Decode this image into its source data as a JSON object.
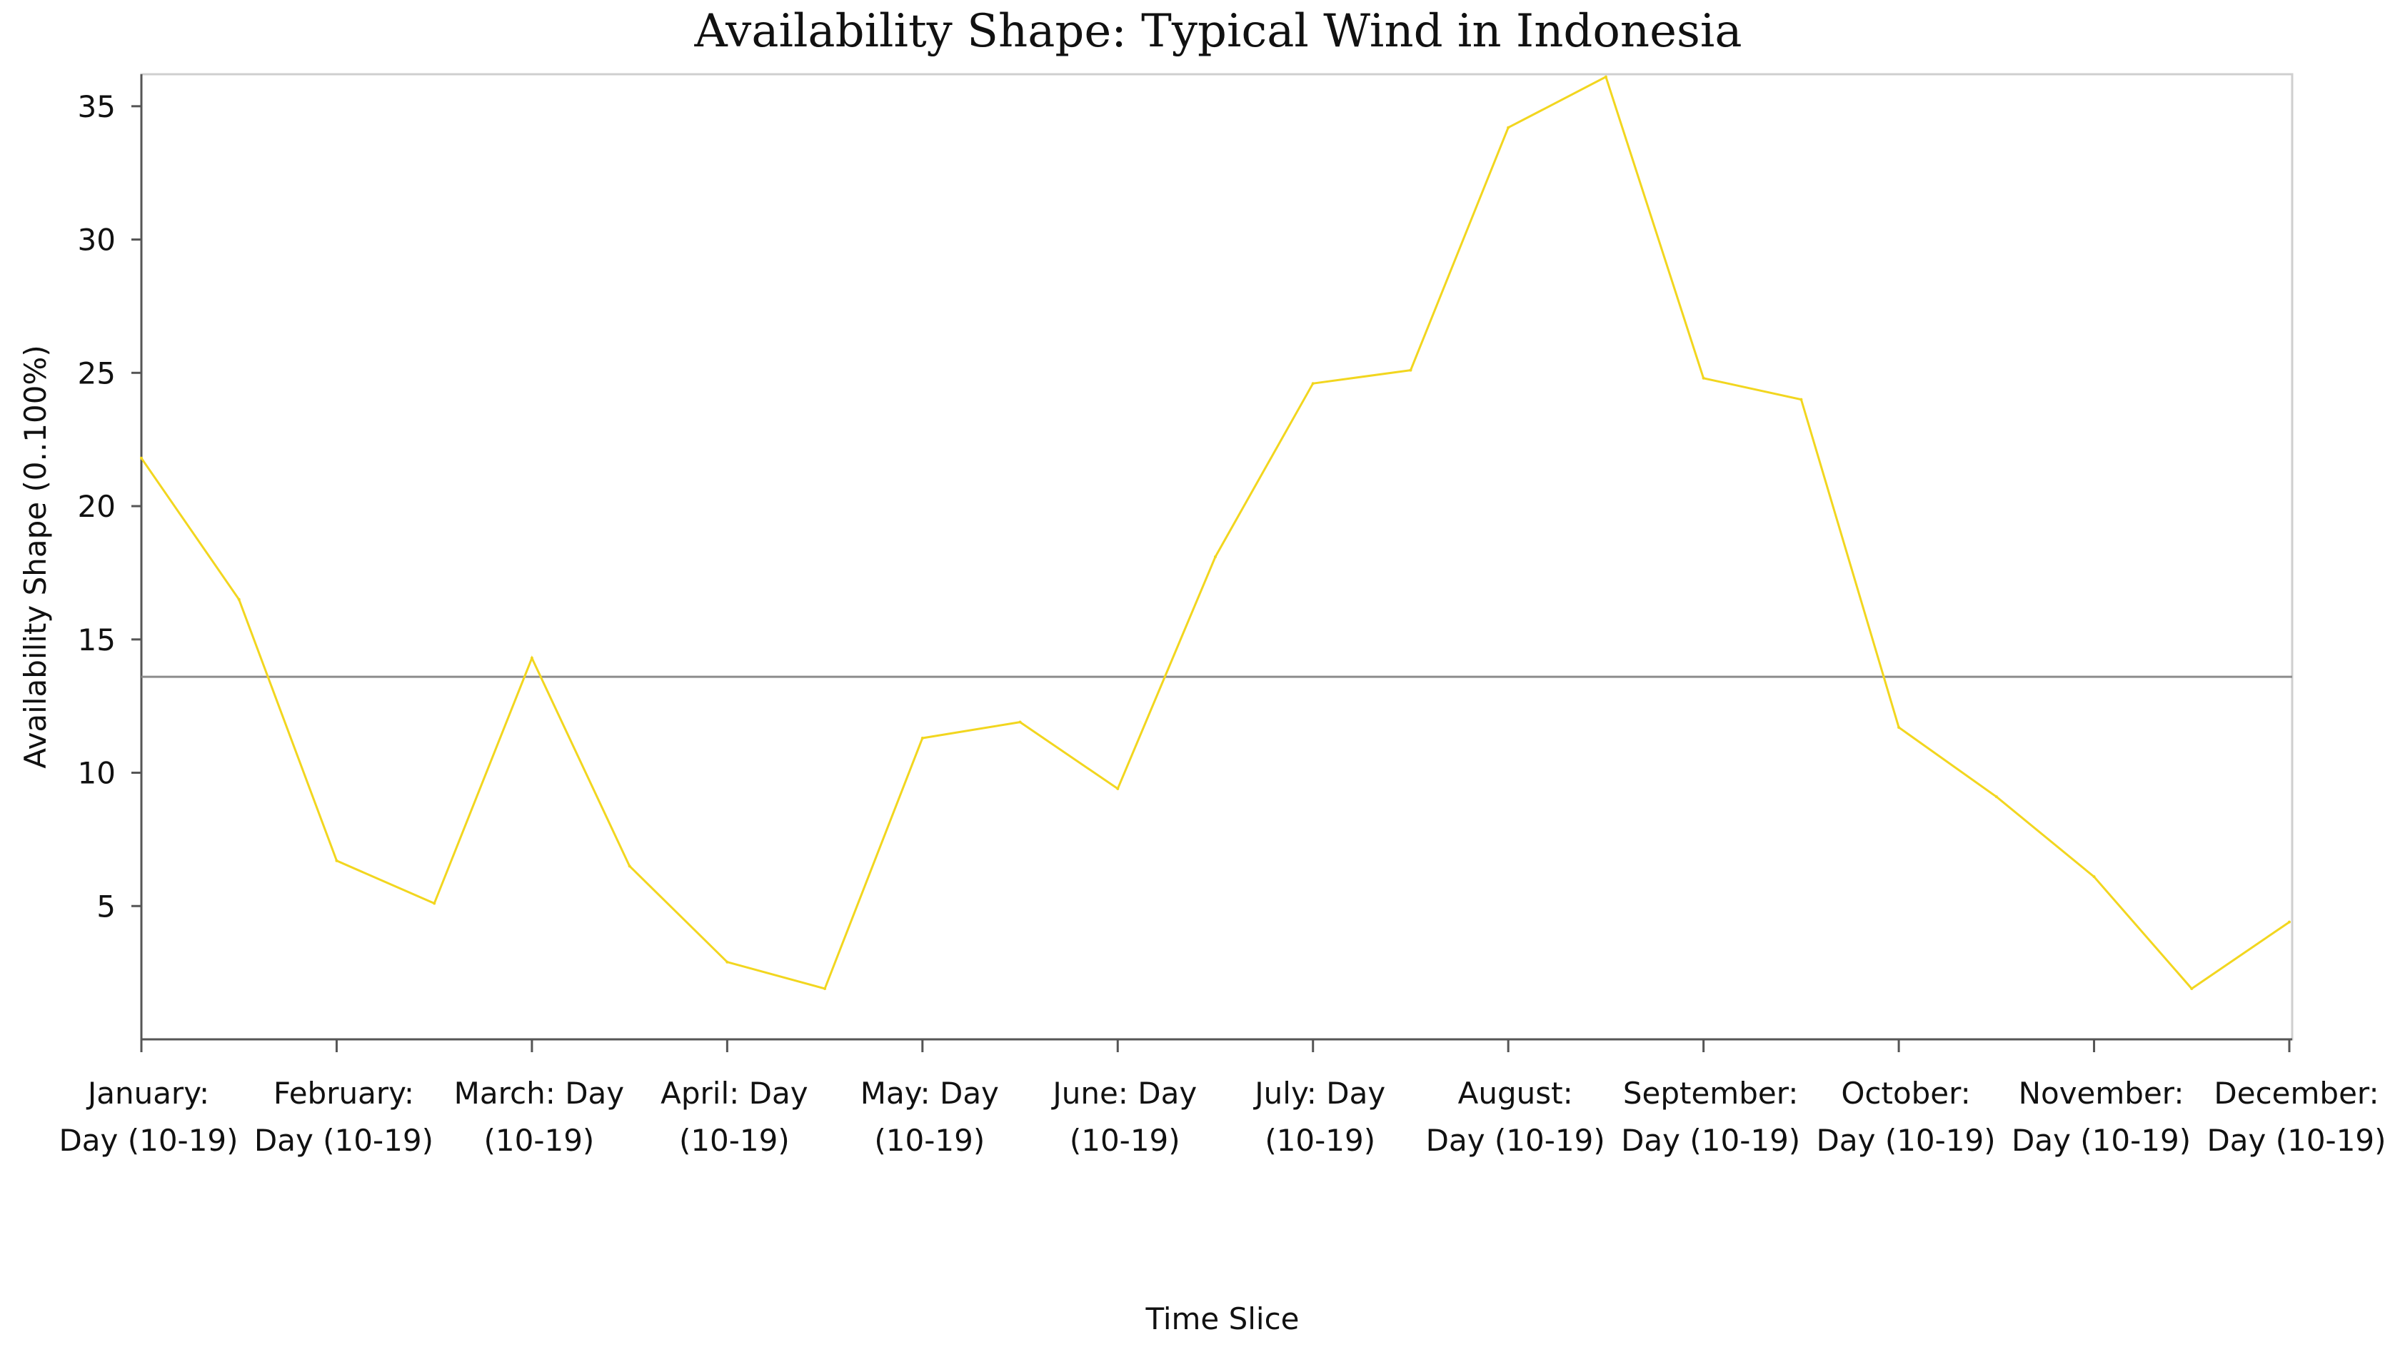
{
  "chart_data": {
    "type": "line",
    "title": "Availability Shape: Typical Wind in Indonesia",
    "xlabel": "Time Slice",
    "ylabel": "Availability Shape (0..100%)",
    "ylim": [
      0,
      36.2
    ],
    "yticks": [
      5,
      10,
      15,
      20,
      25,
      30,
      35
    ],
    "categories": [
      [
        "January:",
        "Day (10-19)"
      ],
      [
        "February:",
        "Day (10-19)"
      ],
      [
        "March: Day",
        "(10-19)"
      ],
      [
        "April: Day",
        "(10-19)"
      ],
      [
        "May: Day",
        "(10-19)"
      ],
      [
        "June: Day",
        "(10-19)"
      ],
      [
        "July: Day",
        "(10-19)"
      ],
      [
        "August:",
        "Day (10-19)"
      ],
      [
        "September:",
        "Day (10-19)"
      ],
      [
        "October:",
        "Day (10-19)"
      ],
      [
        "November:",
        "Day (10-19)"
      ],
      [
        "December:",
        "Day (10-19)"
      ]
    ],
    "series": [
      {
        "color": "#f2d61f",
        "x": [
          0,
          0.5,
          1,
          1.5,
          2,
          2.5,
          3,
          3.5,
          4,
          4.5,
          5,
          5.5,
          6,
          6.5,
          7,
          7.5,
          8,
          8.5,
          9,
          9.5,
          10,
          10.5,
          11
        ],
        "values": [
          21.8,
          16.5,
          6.7,
          5.1,
          14.3,
          6.5,
          2.9,
          1.9,
          11.3,
          11.9,
          9.4,
          18.1,
          24.6,
          25.1,
          34.2,
          36.1,
          24.8,
          24.0,
          11.7,
          9.1,
          6.1,
          1.9,
          4.4
        ]
      }
    ],
    "reference_line": {
      "value": 13.6,
      "color": "#8c8c8c"
    },
    "grid": false,
    "legend": "none"
  }
}
